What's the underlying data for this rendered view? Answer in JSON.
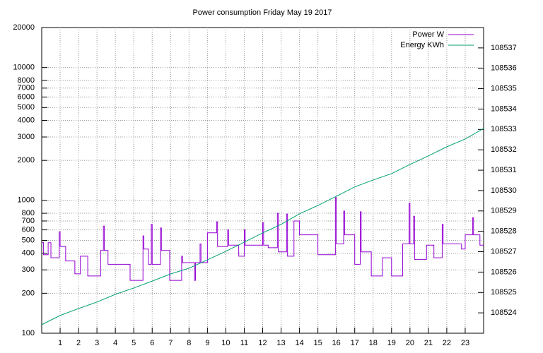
{
  "chart_data": {
    "type": "line",
    "title": "Power consumption Friday May 19 2017",
    "xlim": [
      0,
      24
    ],
    "xticks": [
      1,
      2,
      3,
      4,
      5,
      6,
      7,
      8,
      9,
      10,
      11,
      12,
      13,
      14,
      15,
      16,
      17,
      18,
      19,
      20,
      21,
      22,
      23
    ],
    "ylim": [
      100,
      20000
    ],
    "ylog": true,
    "yticks": [
      100,
      200,
      300,
      400,
      500,
      600,
      700,
      800,
      1000,
      2000,
      3000,
      4000,
      5000,
      6000,
      7000,
      8000,
      10000,
      20000
    ],
    "y2lim": [
      108523,
      108538
    ],
    "y2ticks": [
      108524,
      108525,
      108526,
      108527,
      108528,
      108529,
      108530,
      108531,
      108532,
      108533,
      108534,
      108535,
      108536,
      108537
    ],
    "grid": true,
    "legend": "top-right",
    "series": [
      {
        "name": "Power W",
        "color": "#9400d3",
        "x": [
          0,
          0.1,
          0.1,
          0.35,
          0.35,
          0.5,
          0.5,
          0.95,
          0.95,
          1.0,
          1.0,
          1.3,
          1.3,
          1.8,
          1.8,
          2.1,
          2.1,
          2.5,
          2.5,
          3.2,
          3.2,
          3.35,
          3.35,
          3.4,
          3.4,
          3.6,
          3.6,
          4.8,
          4.8,
          5.5,
          5.5,
          5.55,
          5.55,
          5.8,
          5.8,
          5.95,
          5.95,
          6.0,
          6.0,
          6.45,
          6.45,
          6.5,
          6.5,
          6.95,
          6.95,
          7.6,
          7.6,
          7.65,
          7.65,
          8.3,
          8.3,
          8.35,
          8.35,
          8.6,
          8.6,
          8.65,
          8.65,
          9.0,
          9.0,
          9.5,
          9.5,
          9.55,
          9.55,
          10.1,
          10.1,
          10.15,
          10.15,
          10.7,
          10.7,
          11.0,
          11.0,
          11.05,
          11.05,
          12.0,
          12.0,
          12.05,
          12.05,
          12.3,
          12.3,
          12.8,
          12.8,
          12.85,
          12.85,
          13.3,
          13.3,
          13.35,
          13.35,
          13.7,
          13.7,
          14.0,
          14.0,
          15.0,
          15.0,
          15.95,
          15.95,
          16.0,
          16.0,
          16.4,
          16.4,
          16.45,
          16.45,
          17.0,
          17.0,
          17.3,
          17.3,
          17.35,
          17.35,
          17.9,
          17.9,
          18.5,
          18.5,
          19.0,
          19.0,
          19.6,
          19.6,
          19.95,
          19.95,
          20.0,
          20.0,
          20.2,
          20.2,
          20.25,
          20.25,
          20.9,
          20.9,
          21.3,
          21.3,
          21.75,
          21.75,
          21.8,
          21.8,
          22.8,
          22.8,
          23.0,
          23.0,
          23.4,
          23.4,
          23.45,
          23.45,
          23.8,
          23.8,
          24
        ],
        "values": [
          480,
          480,
          390,
          390,
          480,
          480,
          370,
          370,
          580,
          580,
          450,
          450,
          350,
          350,
          280,
          280,
          380,
          380,
          270,
          270,
          420,
          420,
          640,
          640,
          420,
          420,
          330,
          330,
          250,
          250,
          540,
          540,
          430,
          430,
          330,
          330,
          660,
          660,
          330,
          330,
          620,
          620,
          420,
          420,
          250,
          250,
          380,
          380,
          340,
          340,
          250,
          250,
          340,
          340,
          470,
          470,
          340,
          340,
          570,
          570,
          690,
          690,
          450,
          450,
          600,
          600,
          460,
          460,
          380,
          380,
          600,
          600,
          460,
          460,
          680,
          680,
          460,
          460,
          440,
          440,
          800,
          800,
          410,
          410,
          790,
          790,
          380,
          380,
          700,
          700,
          550,
          550,
          390,
          390,
          1050,
          1050,
          470,
          470,
          830,
          830,
          550,
          550,
          330,
          330,
          820,
          820,
          410,
          410,
          270,
          270,
          370,
          370,
          270,
          270,
          470,
          470,
          950,
          950,
          470,
          470,
          760,
          760,
          360,
          360,
          460,
          460,
          370,
          370,
          660,
          660,
          470,
          470,
          430,
          430,
          550,
          550,
          740,
          740,
          550,
          550,
          460,
          460
        ]
      },
      {
        "name": "Energy KWh",
        "color": "#009e73",
        "axis": "y2",
        "x": [
          0,
          1,
          2,
          3,
          4,
          5,
          6,
          7,
          8,
          9,
          10,
          11,
          12,
          13,
          14,
          15,
          16,
          17,
          18,
          19,
          20,
          21,
          22,
          23,
          24
        ],
        "values": [
          108523.42,
          108523.87,
          108524.21,
          108524.53,
          108524.91,
          108525.22,
          108525.56,
          108525.91,
          108526.19,
          108526.6,
          108527.02,
          108527.47,
          108527.92,
          108528.34,
          108528.86,
          108529.27,
          108529.72,
          108530.18,
          108530.52,
          108530.83,
          108531.28,
          108531.7,
          108532.15,
          108532.53,
          108533.05
        ]
      }
    ]
  }
}
